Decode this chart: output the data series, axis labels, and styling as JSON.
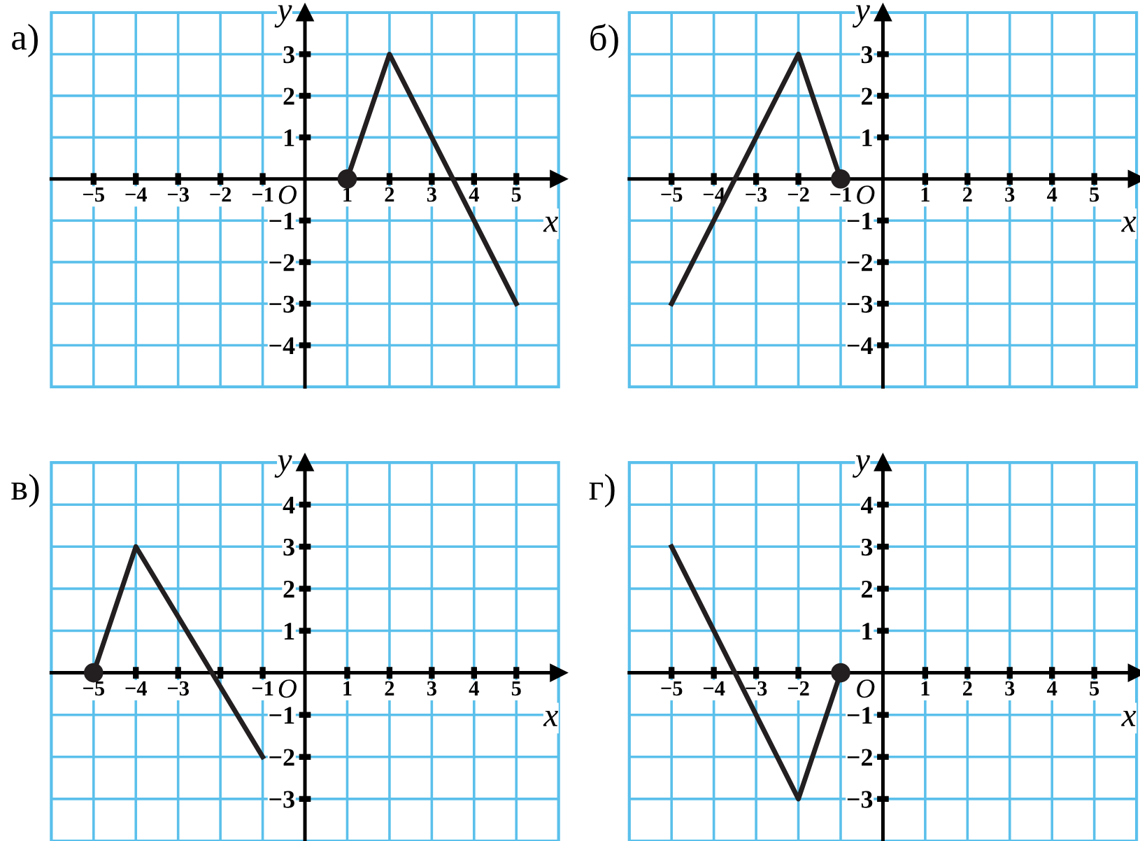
{
  "chart_data": [
    {
      "type": "line",
      "title": "а)",
      "xlabel": "x",
      "ylabel": "y",
      "annotations": [
        "O"
      ],
      "xlim": [
        -6,
        6
      ],
      "ylim": [
        -5,
        4
      ],
      "grid": true,
      "xticks": [
        -5,
        -4,
        -3,
        -2,
        -1,
        1,
        2,
        3,
        4,
        5
      ],
      "yticks": [
        -4,
        -3,
        -2,
        -1,
        1,
        2,
        3
      ],
      "series": [
        {
          "x": [
            1,
            2,
            5
          ],
          "values": [
            0,
            3,
            -3
          ],
          "color": "#231f20",
          "marker": "none"
        },
        {
          "type": "scatter",
          "x": [
            1
          ],
          "values": [
            0
          ],
          "color": "#231f20",
          "marker": "circle"
        }
      ]
    },
    {
      "type": "line",
      "title": "б)",
      "xlabel": "x",
      "ylabel": "y",
      "annotations": [
        "O"
      ],
      "xlim": [
        -6,
        6
      ],
      "ylim": [
        -5,
        4
      ],
      "grid": true,
      "xticks": [
        -5,
        -4,
        -3,
        -2,
        -1,
        1,
        2,
        3,
        4,
        5
      ],
      "yticks": [
        -4,
        -3,
        -2,
        -1,
        1,
        2,
        3
      ],
      "series": [
        {
          "x": [
            -5,
            -2,
            -1
          ],
          "values": [
            -3,
            3,
            0
          ],
          "color": "#231f20",
          "marker": "none"
        },
        {
          "type": "scatter",
          "x": [
            -1
          ],
          "values": [
            0
          ],
          "color": "#231f20",
          "marker": "circle"
        }
      ]
    },
    {
      "type": "line",
      "title": "в)",
      "xlabel": "x",
      "ylabel": "y",
      "annotations": [
        "O"
      ],
      "xlim": [
        -6,
        6
      ],
      "ylim": [
        -4,
        5
      ],
      "grid": true,
      "xticks": [
        -5,
        -4,
        -3,
        {
          "value": -2,
          "label": null
        },
        -1,
        1,
        2,
        3,
        4,
        5
      ],
      "yticks": [
        -3,
        -2,
        -1,
        1,
        2,
        3,
        4
      ],
      "series": [
        {
          "x": [
            -5,
            -4,
            -1
          ],
          "values": [
            0,
            3,
            -2
          ],
          "color": "#231f20",
          "marker": "none"
        },
        {
          "type": "scatter",
          "x": [
            -5
          ],
          "values": [
            0
          ],
          "color": "#231f20",
          "marker": "circle"
        }
      ]
    },
    {
      "type": "line",
      "title": "г)",
      "xlabel": "x",
      "ylabel": "y",
      "annotations": [
        "O"
      ],
      "xlim": [
        -6,
        6
      ],
      "ylim": [
        -4,
        5
      ],
      "grid": true,
      "xticks": [
        -5,
        -4,
        -3,
        -2,
        {
          "value": -1,
          "label": null
        },
        1,
        2,
        3,
        4,
        5
      ],
      "yticks": [
        -3,
        -2,
        -1,
        1,
        2,
        3,
        4
      ],
      "series": [
        {
          "x": [
            -5,
            -2,
            -1
          ],
          "values": [
            3,
            -3,
            0
          ],
          "color": "#231f20",
          "marker": "none"
        },
        {
          "type": "scatter",
          "x": [
            -1
          ],
          "values": [
            0
          ],
          "color": "#231f20",
          "marker": "circle"
        }
      ]
    }
  ]
}
